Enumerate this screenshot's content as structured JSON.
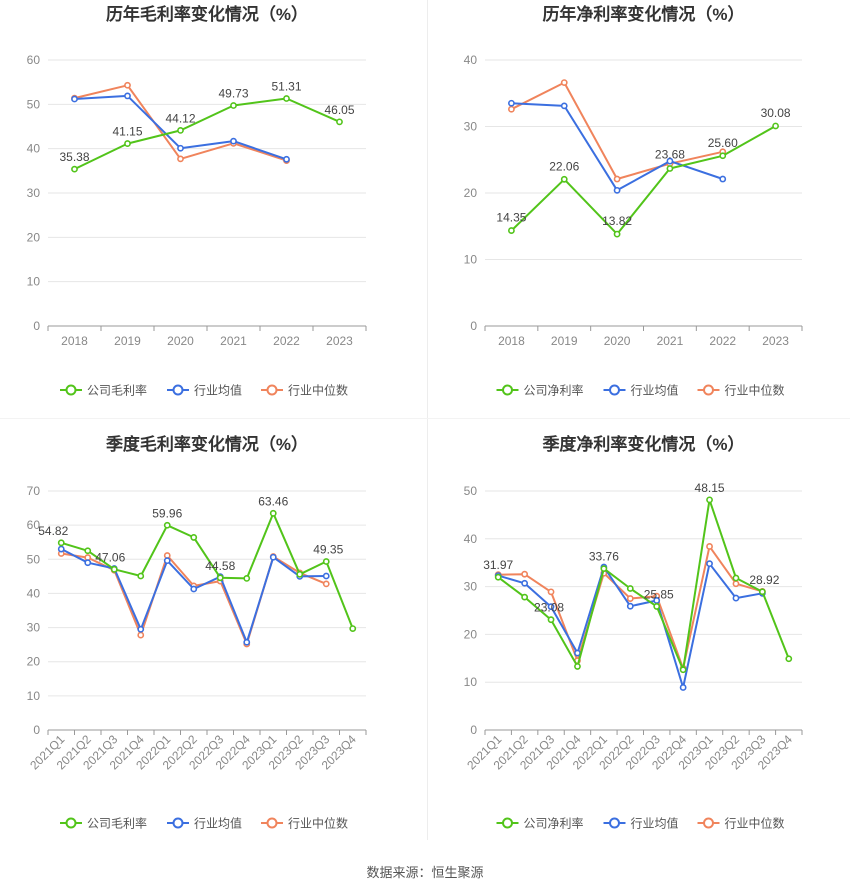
{
  "source_text": "数据来源：恒生聚源",
  "chart_data": [
    {
      "id": "annual_gross",
      "type": "line",
      "title": "历年毛利率变化情况（%）",
      "categories": [
        "2018",
        "2019",
        "2020",
        "2021",
        "2022",
        "2023"
      ],
      "ylim": [
        0,
        60
      ],
      "yticks": [
        0,
        10,
        20,
        30,
        40,
        50,
        60
      ],
      "grid": true,
      "legend_position": "bottom",
      "series": [
        {
          "name": "公司毛利率",
          "color": "#52c41a",
          "values": [
            35.38,
            41.15,
            44.12,
            49.73,
            51.31,
            46.05
          ],
          "labels": [
            "35.38",
            "41.15",
            "44.12",
            "49.73",
            "51.31",
            "46.05"
          ]
        },
        {
          "name": "行业均值",
          "color": "#3b6fe0",
          "values": [
            51.2,
            51.9,
            40.1,
            41.7,
            37.6,
            null
          ]
        },
        {
          "name": "行业中位数",
          "color": "#f0845c",
          "values": [
            51.4,
            54.3,
            37.7,
            41.2,
            37.3,
            null
          ]
        }
      ]
    },
    {
      "id": "annual_net",
      "type": "line",
      "title": "历年净利率变化情况（%）",
      "categories": [
        "2018",
        "2019",
        "2020",
        "2021",
        "2022",
        "2023"
      ],
      "ylim": [
        0,
        40
      ],
      "yticks": [
        0,
        10,
        20,
        30,
        40
      ],
      "grid": true,
      "legend_position": "bottom",
      "series": [
        {
          "name": "公司净利率",
          "color": "#52c41a",
          "values": [
            14.35,
            22.06,
            13.82,
            23.68,
            25.6,
            30.08
          ],
          "labels": [
            "14.35",
            "22.06",
            "13.82",
            "23.68",
            "25.60",
            "30.08"
          ]
        },
        {
          "name": "行业均值",
          "color": "#3b6fe0",
          "values": [
            33.5,
            33.1,
            20.4,
            24.8,
            22.1,
            null
          ]
        },
        {
          "name": "行业中位数",
          "color": "#f0845c",
          "values": [
            32.6,
            36.6,
            22.1,
            24.4,
            26.2,
            null
          ]
        }
      ]
    },
    {
      "id": "quarter_gross",
      "type": "line",
      "title": "季度毛利率变化情况（%）",
      "categories": [
        "2021Q1",
        "2021Q2",
        "2021Q3",
        "2021Q4",
        "2022Q1",
        "2022Q2",
        "2022Q3",
        "2022Q4",
        "2023Q1",
        "2023Q2",
        "2023Q3",
        "2023Q4"
      ],
      "ylim": [
        0,
        70
      ],
      "yticks": [
        0,
        10,
        20,
        30,
        40,
        50,
        60,
        70
      ],
      "grid": true,
      "legend_position": "bottom",
      "series": [
        {
          "name": "公司毛利率",
          "color": "#52c41a",
          "values": [
            54.82,
            52.5,
            47.06,
            45.1,
            59.96,
            56.4,
            44.58,
            44.4,
            63.46,
            45.6,
            49.35,
            29.7
          ],
          "labels": [
            "54.82",
            "",
            "47.06",
            "",
            "59.96",
            "",
            "44.58",
            "",
            "63.46",
            "",
            "49.35",
            ""
          ]
        },
        {
          "name": "行业均值",
          "color": "#3b6fe0",
          "values": [
            53.0,
            49.0,
            47.3,
            29.5,
            49.6,
            41.3,
            44.9,
            25.7,
            50.6,
            45.0,
            45.1,
            null
          ]
        },
        {
          "name": "行业中位数",
          "color": "#f0845c",
          "values": [
            51.7,
            50.5,
            46.8,
            27.8,
            51.1,
            42.2,
            43.6,
            25.2,
            50.8,
            46.0,
            42.8,
            null
          ]
        }
      ]
    },
    {
      "id": "quarter_net",
      "type": "line",
      "title": "季度净利率变化情况（%）",
      "categories": [
        "2021Q1",
        "2021Q2",
        "2021Q3",
        "2021Q4",
        "2022Q1",
        "2022Q2",
        "2022Q3",
        "2022Q4",
        "2023Q1",
        "2023Q2",
        "2023Q3",
        "2023Q4"
      ],
      "ylim": [
        0,
        50
      ],
      "yticks": [
        0,
        10,
        20,
        30,
        40,
        50
      ],
      "grid": true,
      "legend_position": "bottom",
      "series": [
        {
          "name": "公司净利率",
          "color": "#52c41a",
          "values": [
            31.97,
            27.8,
            23.08,
            13.3,
            33.76,
            29.6,
            25.85,
            12.6,
            48.15,
            31.8,
            28.92,
            14.9
          ],
          "labels": [
            "31.97",
            "",
            "23.08",
            "",
            "33.76",
            "",
            "25.85",
            "",
            "48.15",
            "",
            "28.92",
            ""
          ]
        },
        {
          "name": "行业均值",
          "color": "#3b6fe0",
          "values": [
            32.3,
            30.7,
            25.8,
            16.1,
            34.1,
            25.9,
            27.1,
            8.9,
            34.8,
            27.6,
            28.6,
            null
          ]
        },
        {
          "name": "行业中位数",
          "color": "#f0845c",
          "values": [
            32.5,
            32.6,
            28.9,
            14.5,
            32.8,
            27.5,
            28.0,
            12.9,
            38.4,
            30.6,
            29.0,
            null
          ]
        }
      ]
    }
  ]
}
